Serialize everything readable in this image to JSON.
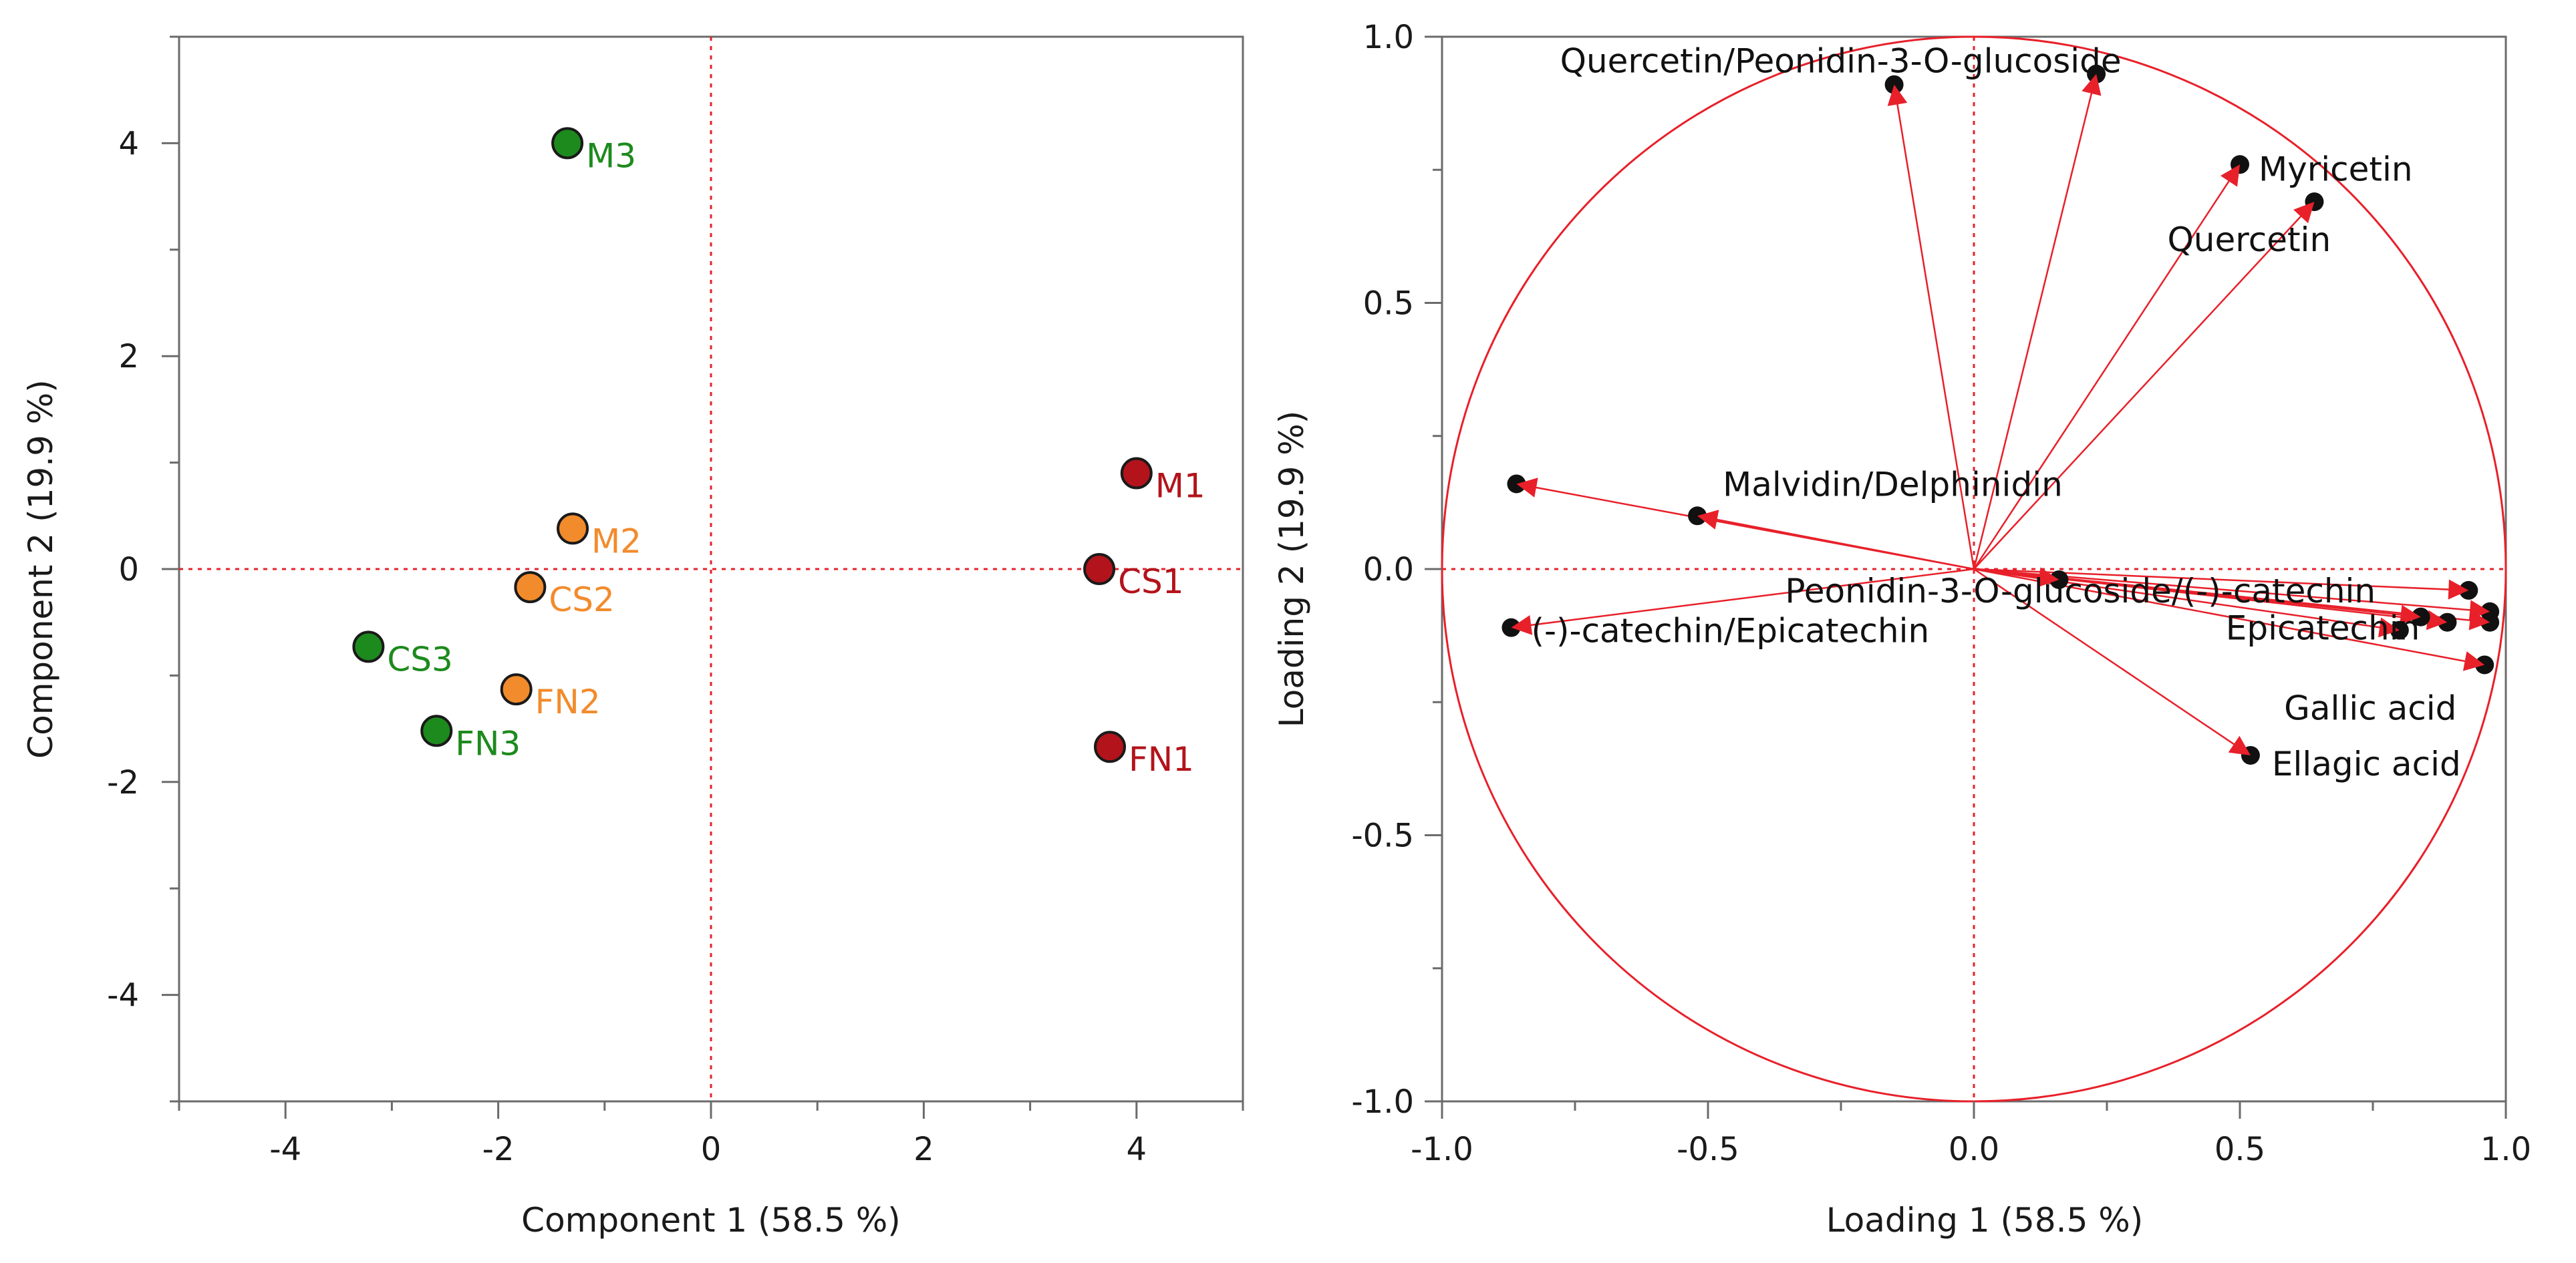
{
  "chart_data": [
    {
      "type": "scatter",
      "title": "",
      "xlabel": "Component 1  (58.5 %)",
      "ylabel": "Component 2  (19.9 %)",
      "xlim": [
        -5,
        5
      ],
      "ylim": [
        -5,
        5
      ],
      "xticks": [
        -4,
        -2,
        0,
        2,
        4
      ],
      "yticks": [
        -4,
        -2,
        0,
        2,
        4
      ],
      "x_tick_labels": [
        "-4",
        "-2",
        "0",
        "2",
        "4"
      ],
      "y_tick_labels": [
        "-4",
        "-2",
        "0",
        "2",
        "4"
      ],
      "reference_lines": {
        "x": 0,
        "y": 0,
        "style": "dotted",
        "color": "#e8202a"
      },
      "points": [
        {
          "label": "M1",
          "x": 4.0,
          "y": 0.9,
          "color": "#b3131b"
        },
        {
          "label": "CS1",
          "x": 3.65,
          "y": 0.0,
          "color": "#b3131b"
        },
        {
          "label": "FN1",
          "x": 3.75,
          "y": -1.67,
          "color": "#b3131b"
        },
        {
          "label": "M2",
          "x": -1.3,
          "y": 0.38,
          "color": "#f28b2c"
        },
        {
          "label": "CS2",
          "x": -1.7,
          "y": -0.17,
          "color": "#f28b2c"
        },
        {
          "label": "FN2",
          "x": -1.83,
          "y": -1.13,
          "color": "#f28b2c"
        },
        {
          "label": "M3",
          "x": -1.35,
          "y": 4.0,
          "color": "#1d8a1d"
        },
        {
          "label": "CS3",
          "x": -3.22,
          "y": -0.73,
          "color": "#1d8a1d"
        },
        {
          "label": "FN3",
          "x": -2.58,
          "y": -1.52,
          "color": "#1d8a1d"
        }
      ]
    },
    {
      "type": "scatter",
      "subtype": "loading-plot",
      "title": "",
      "xlabel": "Loading 1  (58.5 %)",
      "ylabel": "Loading 2  (19.9 %)",
      "xlim": [
        -1,
        1
      ],
      "ylim": [
        -1,
        1
      ],
      "xticks": [
        -1,
        -0.5,
        0,
        0.5,
        1
      ],
      "yticks": [
        -1,
        -0.5,
        0,
        0.5,
        1
      ],
      "x_tick_labels": [
        "-1.0",
        "-0.5",
        "0.0",
        "0.5",
        "1.0"
      ],
      "y_tick_labels": [
        "-1.0",
        "-0.5",
        "0.0",
        "0.5",
        "1.0"
      ],
      "unit_circle": true,
      "reference_lines": {
        "x": 0,
        "y": 0,
        "style": "dotted",
        "color": "#e8202a"
      },
      "arrow_color": "#e8202a",
      "variables": [
        {
          "label": "Quercetin/Peonidin-3-O-glucoside",
          "x": -0.15,
          "y": 0.91
        },
        {
          "label": "",
          "x": 0.23,
          "y": 0.93
        },
        {
          "label": "Myricetin",
          "x": 0.5,
          "y": 0.76
        },
        {
          "label": "Quercetin",
          "x": 0.64,
          "y": 0.69
        },
        {
          "label": "Malvidin/Delphinidin",
          "x": -0.52,
          "y": 0.1
        },
        {
          "label": "",
          "x": -0.86,
          "y": 0.16
        },
        {
          "label": "(-)-catechin/Epicatechin",
          "x": -0.87,
          "y": -0.11
        },
        {
          "label": "Peonidin-3-O-glucoside/(-)-catechin",
          "x": 0.16,
          "y": -0.02
        },
        {
          "label": "",
          "x": 0.93,
          "y": -0.04
        },
        {
          "label": "",
          "x": 0.97,
          "y": -0.08
        },
        {
          "label": "",
          "x": 0.97,
          "y": -0.1
        },
        {
          "label": "",
          "x": 0.89,
          "y": -0.1
        },
        {
          "label": "",
          "x": 0.84,
          "y": -0.09
        },
        {
          "label": "Epicatechin",
          "x": 0.8,
          "y": -0.115
        },
        {
          "label": "Gallic acid",
          "x": 0.96,
          "y": -0.18
        },
        {
          "label": "Ellagic acid",
          "x": 0.52,
          "y": -0.35
        }
      ]
    }
  ]
}
